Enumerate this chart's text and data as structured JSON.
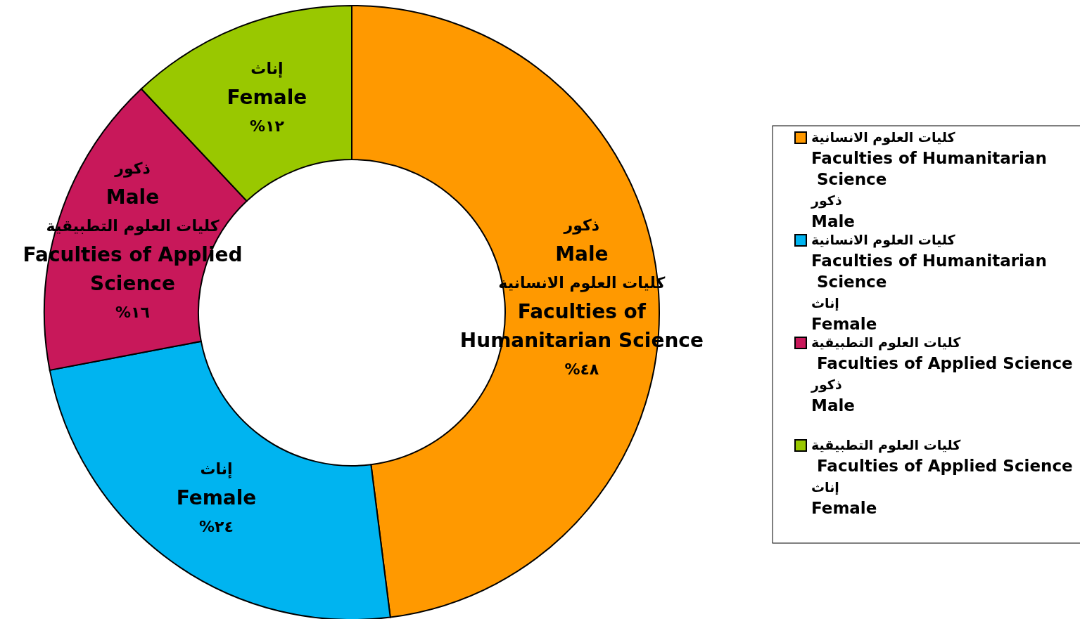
{
  "chart_data": {
    "type": "donut",
    "categories": [
      "كليات العلوم الانسانية\nFaculties of Humanitarian\n Science\nذكور\nMale",
      "كليات العلوم الانسانية\nFaculties of Humanitarian\n Science\nإناث\nFemale",
      "كليات العلوم التطبيقية\n Faculties of Applied Science\nذكور\nMale",
      "كليات العلوم التطبيقية\n Faculties of Applied Science\nإناث\nFemale"
    ],
    "values": [
      48,
      24,
      16,
      12
    ],
    "colors": [
      "#ff9900",
      "#00b4f0",
      "#c8185a",
      "#99c800"
    ],
    "value_labels": [
      "ذكور\nMale\nكليات العلوم الانسانية\nFaculties of\nHumanitarian Science\n%٤٨",
      "إناث\nFemale\n%٢٤",
      "ذكور\nMale\nكليات العلوم التطبيقية\nFaculties of Applied\nScience\n%١٦",
      "إناث\nFemale\n%١٢"
    ],
    "legend": "right"
  }
}
